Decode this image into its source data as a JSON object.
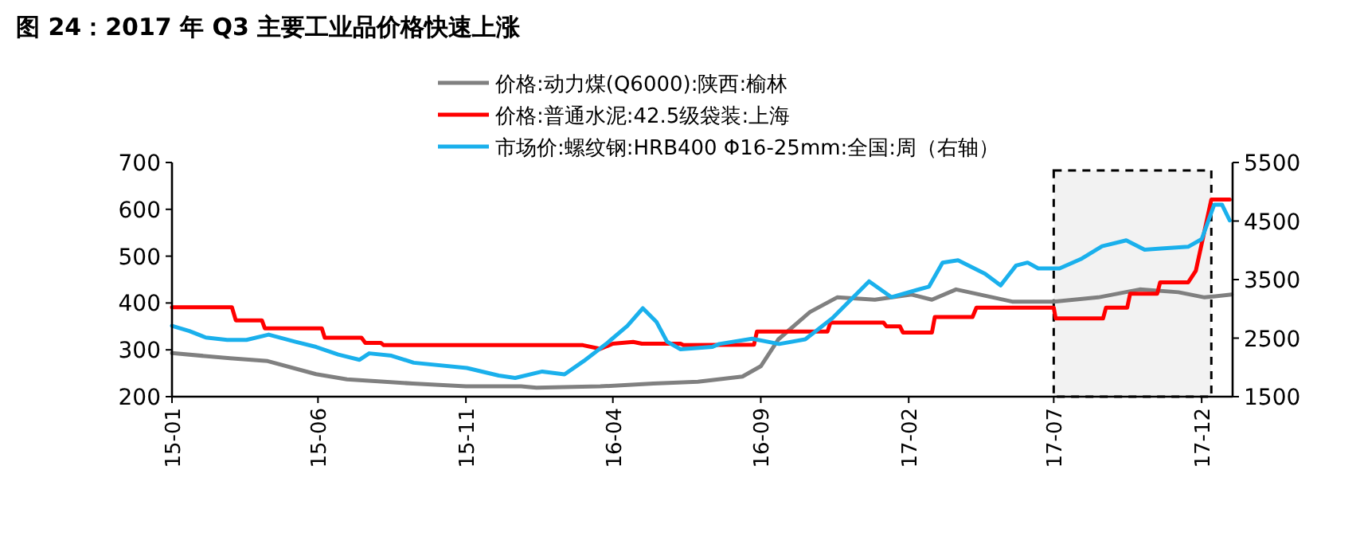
{
  "chart_data": {
    "type": "line",
    "title": "图 24：2017 年 Q3 主要工业品价格快速上涨",
    "legend": "top",
    "grid": false,
    "marker": "none",
    "line_style": "solid",
    "xlim": [
      "2015-01-01",
      "2018-01-02"
    ],
    "xticks": [
      {
        "value": "2015-01",
        "label": "15-01"
      },
      {
        "value": "2015-06",
        "label": "15-06"
      },
      {
        "value": "2015-11",
        "label": "15-11"
      },
      {
        "value": "2016-04",
        "label": "16-04"
      },
      {
        "value": "2016-09",
        "label": "16-09"
      },
      {
        "value": "2017-02",
        "label": "17-02"
      },
      {
        "value": "2017-07",
        "label": "17-07"
      },
      {
        "value": "2017-12",
        "label": "17-12"
      }
    ],
    "bands": [
      {
        "axis": "x",
        "from": "2017-07-01",
        "to": "2017-12-11",
        "color": "#000000"
      }
    ],
    "ylim": [
      200,
      700
    ],
    "yticks": [
      200,
      300,
      400,
      500,
      600,
      700
    ],
    "y2lim": [
      1500,
      5500
    ],
    "y2ticks": [
      1500,
      2500,
      3500,
      4500,
      5500
    ],
    "series": [
      {
        "name": "价格:动力煤(Q6000):陕西:榆林",
        "color": "#808080",
        "x": [
          "2015-01-01",
          "2015-03-02",
          "2015-04-10",
          "2015-05-30",
          "2015-07-01",
          "2015-09-07",
          "2015-11-01",
          "2015-12-28",
          "2016-01-13",
          "2016-03-19",
          "2016-05-13",
          "2016-06-28",
          "2016-08-13",
          "2016-09-01",
          "2016-09-19",
          "2016-10-22",
          "2016-11-19",
          "2016-12-28",
          "2017-02-04",
          "2017-02-25",
          "2017-03-22",
          "2017-05-19",
          "2017-07-01",
          "2017-08-16",
          "2017-09-28",
          "2017-11-07",
          "2017-12-04",
          "2018-01-01"
        ],
        "values": [
          293,
          282,
          276,
          248,
          237,
          228,
          222,
          222,
          219,
          222,
          228,
          232,
          243,
          265,
          322,
          381,
          412,
          407,
          418,
          407,
          429,
          403,
          403,
          412,
          429,
          423,
          412,
          418
        ]
      },
      {
        "name": "价格:普通水泥:42.5级袋装:上海",
        "color": "#ff0000",
        "x": [
          "2015-01-01",
          "2015-03-04",
          "2015-03-08",
          "2015-04-04",
          "2015-04-07",
          "2015-06-05",
          "2015-06-08",
          "2015-07-16",
          "2015-07-20",
          "2015-08-05",
          "2015-08-08",
          "2016-03-01",
          "2016-03-19",
          "2016-04-01",
          "2016-04-22",
          "2016-05-01",
          "2016-06-10",
          "2016-06-13",
          "2016-08-25",
          "2016-08-28",
          "2016-11-09",
          "2016-11-12",
          "2017-01-06",
          "2017-01-09",
          "2017-01-23",
          "2017-01-26",
          "2017-02-25",
          "2017-02-28",
          "2017-04-08",
          "2017-04-12",
          "2017-07-01",
          "2017-07-03",
          "2017-08-21",
          "2017-08-24",
          "2017-09-15",
          "2017-09-18",
          "2017-10-16",
          "2017-10-19",
          "2017-11-17",
          "2017-11-25",
          "2017-12-11",
          "2017-12-30"
        ],
        "values": [
          391,
          391,
          363,
          363,
          346,
          346,
          326,
          326,
          315,
          315,
          310,
          310,
          302,
          313,
          317,
          313,
          313,
          310,
          311,
          339,
          339,
          358,
          358,
          350,
          350,
          337,
          337,
          370,
          370,
          390,
          390,
          367,
          367,
          390,
          390,
          420,
          420,
          444,
          444,
          469,
          621,
          621
        ]
      },
      {
        "name": "市场价:螺纹钢:HRB400 Φ16-25mm:全国:周（右轴）",
        "color": "#1ab0ec",
        "axis": "y2",
        "x": [
          "2015-01-01",
          "2015-01-19",
          "2015-02-05",
          "2015-02-27",
          "2015-03-19",
          "2015-04-11",
          "2015-05-08",
          "2015-05-30",
          "2015-06-22",
          "2015-07-14",
          "2015-07-24",
          "2015-08-16",
          "2015-09-08",
          "2015-11-02",
          "2015-12-05",
          "2015-12-22",
          "2016-01-19",
          "2016-02-11",
          "2016-03-02",
          "2016-03-25",
          "2016-04-16",
          "2016-05-02",
          "2016-05-16",
          "2016-05-27",
          "2016-06-10",
          "2016-07-13",
          "2016-07-20",
          "2016-08-23",
          "2016-09-20",
          "2016-10-17",
          "2016-11-14",
          "2016-12-22",
          "2017-01-14",
          "2017-02-11",
          "2017-02-22",
          "2017-03-08",
          "2017-03-24",
          "2017-04-21",
          "2017-05-07",
          "2017-05-23",
          "2017-06-04",
          "2017-06-15",
          "2017-07-07",
          "2017-07-29",
          "2017-08-20",
          "2017-09-14",
          "2017-10-03",
          "2017-10-20",
          "2017-11-17",
          "2017-12-01",
          "2017-12-14",
          "2017-12-22",
          "2017-12-30"
        ],
        "values": [
          2710,
          2620,
          2510,
          2470,
          2470,
          2560,
          2440,
          2350,
          2220,
          2130,
          2240,
          2200,
          2080,
          1990,
          1860,
          1820,
          1930,
          1880,
          2110,
          2400,
          2710,
          3010,
          2780,
          2440,
          2310,
          2350,
          2400,
          2490,
          2400,
          2480,
          2840,
          3470,
          3200,
          3330,
          3380,
          3790,
          3830,
          3600,
          3400,
          3740,
          3790,
          3690,
          3690,
          3850,
          4070,
          4170,
          4010,
          4030,
          4060,
          4190,
          4780,
          4780,
          4510
        ]
      }
    ]
  }
}
